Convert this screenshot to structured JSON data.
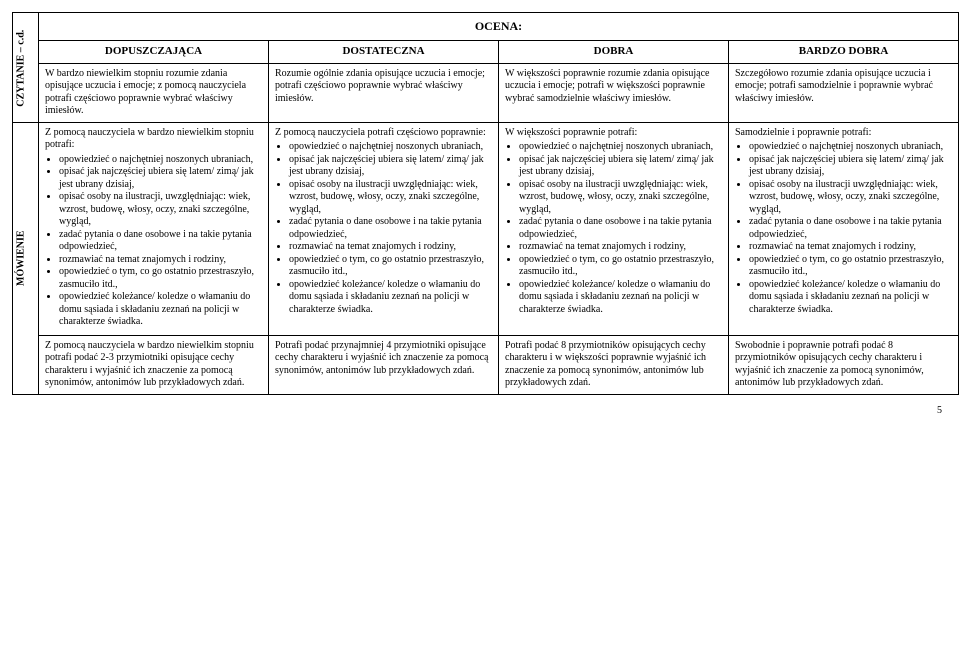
{
  "headers": {
    "ocena": "OCENA:",
    "grades": [
      "DOPUSZCZAJĄCA",
      "DOSTATECZNA",
      "DOBRA",
      "BARDZO DOBRA"
    ]
  },
  "sideLabels": {
    "czytanie": "CZYTANIE – c.d.",
    "mowienie": "MÓWIENIE"
  },
  "row_czytanie": {
    "c1": "W bardzo niewielkim stopniu rozumie zdania opisujące uczucia i emocje; z pomocą nauczyciela potrafi częściowo poprawnie wybrać właściwy imiesłów.",
    "c2": "Rozumie ogólnie zdania opisujące uczucia i emocje; potrafi częściowo poprawnie wybrać właściwy imiesłów.",
    "c3": "W większości poprawnie rozumie zdania opisujące uczucia i emocje; potrafi w większości poprawnie wybrać samodzielnie właściwy imiesłów.",
    "c4": "Szczegółowo rozumie zdania opisujące uczucia i emocje; potrafi samodzielnie i poprawnie wybrać właściwy imiesłów."
  },
  "row_mowienie_a": {
    "c1_intro": "Z pomocą nauczyciela w bardzo niewielkim stopniu potrafi:",
    "c2_intro": "Z pomocą nauczyciela potrafi częściowo poprawnie:",
    "c3_intro": "W większości poprawnie potrafi:",
    "c4_intro": "Samodzielnie i poprawnie potrafi:",
    "b1": "opowiedzieć o najchętniej noszonych ubraniach,",
    "b2": "opisać jak najczęściej ubiera się latem/ zimą/ jak jest ubrany dzisiaj,",
    "b3_c1": "opisać osoby na ilustracji, uwzględniając: wiek, wzrost, budowę, włosy, oczy, znaki szczególne, wygląd,",
    "b3_c2": "opisać osoby na ilustracji uwzględniając: wiek, wzrost, budowę, włosy, oczy, znaki szczególne, wygląd,",
    "b3_c3": "opisać osoby na ilustracji uwzględniając: wiek, wzrost, budowę, włosy, oczy, znaki szczególne, wygląd,",
    "b3_c4": "opisać osoby na ilustracji uwzględniając: wiek, wzrost, budowę, włosy, oczy, znaki szczególne, wygląd,",
    "b4": "zadać pytania o dane osobowe i na takie pytania odpowiedzieć,",
    "b5": "rozmawiać na temat znajomych i rodziny,",
    "b6": "opowiedzieć o tym, co go ostatnio przestraszyło, zasmuciło itd.,",
    "b7": "opowiedzieć koleżance/ koledze o włamaniu do domu sąsiada i składaniu zeznań na policji w charakterze świadka."
  },
  "row_mowienie_b": {
    "c1": "Z pomocą nauczyciela w bardzo niewielkim stopniu potrafi podać 2-3 przymiotniki opisujące cechy charakteru i wyjaśnić ich znaczenie za pomocą synonimów, antonimów lub przykładowych zdań.",
    "c2": "Potrafi podać przynajmniej 4 przymiotniki opisujące cechy charakteru i wyjaśnić ich znaczenie za pomocą synonimów, antonimów lub przykładowych zdań.",
    "c3": "Potrafi podać 8 przymiotników opisujących cechy charakteru i w większości poprawnie wyjaśnić ich znaczenie za pomocą synonimów, antonimów lub przykładowych zdań.",
    "c4": "Swobodnie i poprawnie potrafi podać 8 przymiotników opisujących cechy charakteru i wyjaśnić ich znaczenie za pomocą synonimów, antonimów lub przykładowych zdań."
  },
  "pageNumber": "5"
}
